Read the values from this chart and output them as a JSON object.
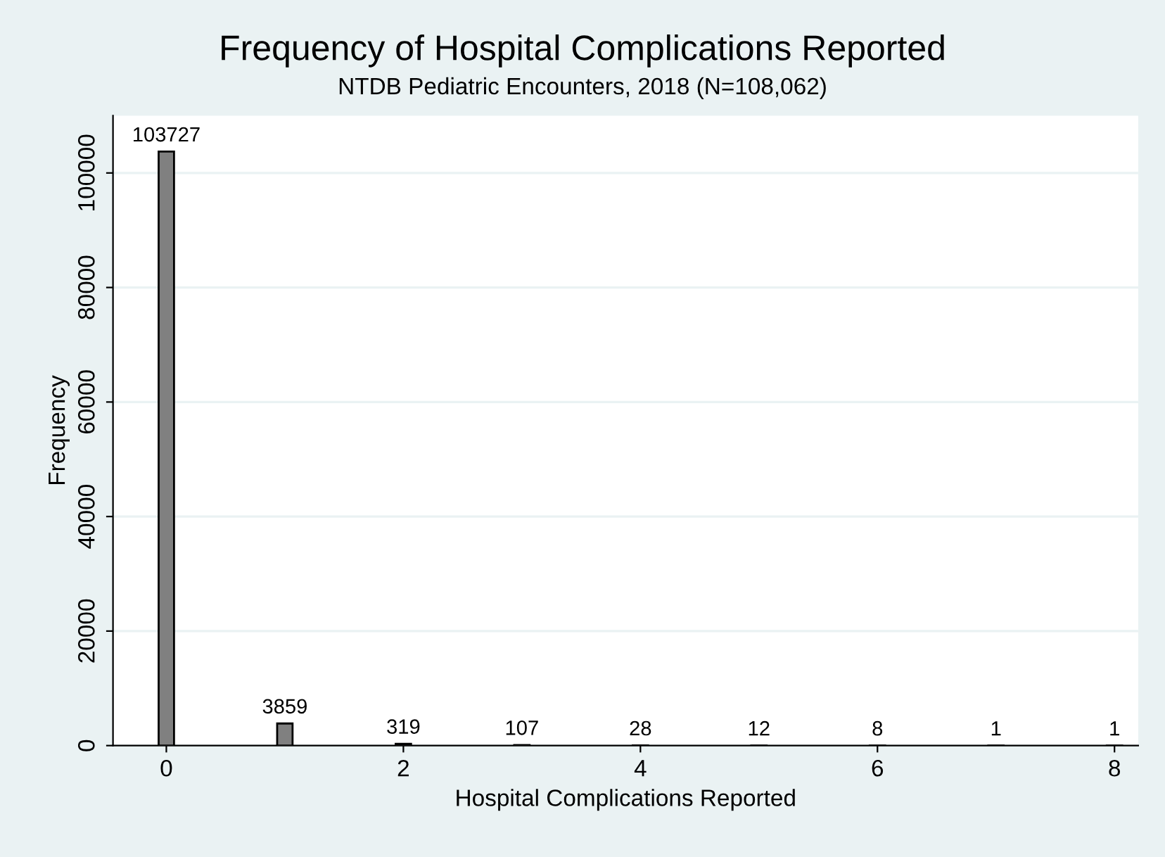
{
  "chart_data": {
    "type": "bar",
    "title": "Frequency of Hospital Complications Reported",
    "subtitle": "NTDB Pediatric Encounters, 2018 (N=108,062)",
    "xlabel": "Hospital Complications Reported",
    "ylabel": "Frequency",
    "x": [
      0,
      1,
      2,
      3,
      4,
      5,
      6,
      7,
      8
    ],
    "values": [
      103727,
      3859,
      319,
      107,
      28,
      12,
      8,
      1,
      1
    ],
    "color": "#808080",
    "data_labels": true,
    "xlim": [
      -0.45,
      8.2
    ],
    "xticks": [
      0,
      2,
      4,
      6,
      8
    ],
    "ylim": [
      0,
      110000
    ],
    "yticks": [
      0,
      20000,
      40000,
      60000,
      80000,
      100000
    ],
    "grid": "y",
    "legend": false
  }
}
